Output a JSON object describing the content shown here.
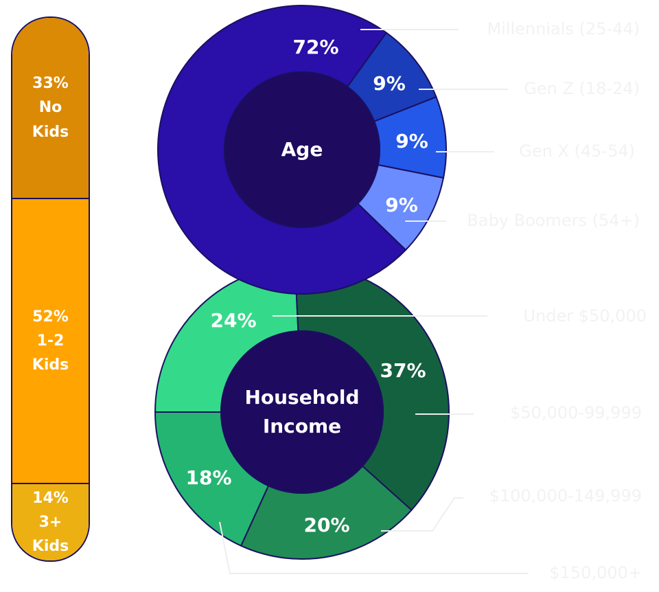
{
  "chart_data": [
    {
      "type": "bar",
      "categories": [
        "No Kids",
        "1-2 Kids",
        "3+ Kids"
      ],
      "values": [
        33,
        52,
        14
      ],
      "value_labels": [
        "33%",
        "52%",
        "14%"
      ],
      "colors": [
        "#db8a06",
        "#ffa400",
        "#edb012"
      ]
    },
    {
      "type": "donut",
      "title": "Age",
      "categories": [
        "Millennials (25-44)",
        "Gen Z (18-24)",
        "Gen X (45-54)",
        "Baby Boomers (54+)"
      ],
      "values": [
        72,
        9,
        9,
        9
      ],
      "value_labels": [
        "72%",
        "9%",
        "9%",
        "9%"
      ],
      "colors": [
        "#2a0fa8",
        "#1b3dba",
        "#2458e8",
        "#6a8cff"
      ]
    },
    {
      "type": "donut",
      "title": "Household Income",
      "categories": [
        "Under $50,000",
        "$50,000-99,999",
        "$100,000-149,999",
        "$150,000+"
      ],
      "values": [
        24,
        37,
        20,
        18
      ],
      "value_labels": [
        "24%",
        "37%",
        "20%",
        "18%"
      ],
      "colors": [
        "#35d98a",
        "#14613f",
        "#218c55",
        "#25b573"
      ]
    }
  ]
}
